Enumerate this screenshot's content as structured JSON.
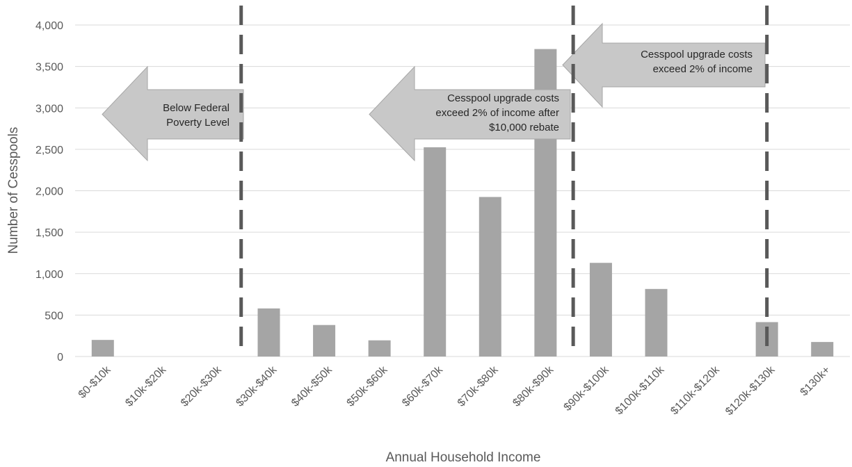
{
  "chart_data": {
    "type": "bar",
    "xlabel": "Annual Household Income",
    "ylabel": "Number of Cesspools",
    "ylim": [
      0,
      4000
    ],
    "yticks": [
      "0",
      "500",
      "1,000",
      "1,500",
      "2,000",
      "2,500",
      "3,000",
      "3,500",
      "4,000"
    ],
    "ytick_values": [
      0,
      500,
      1000,
      1500,
      2000,
      2500,
      3000,
      3500,
      4000
    ],
    "categories": [
      "$0-$10k",
      "$10k-$20k",
      "$20k-$30k",
      "$30k-$40k",
      "$40k-$50k",
      "$50k-$60k",
      "$60k-$70k",
      "$70k-$80k",
      "$80k-$90k",
      "$90k-$100k",
      "$100k-$110k",
      "$110k-$120k",
      "$120k-$130k",
      "$130k+"
    ],
    "values": [
      200,
      0,
      0,
      580,
      380,
      195,
      2525,
      1925,
      3710,
      1130,
      815,
      0,
      415,
      175
    ],
    "grid": true,
    "bar_color": "#a5a5a5",
    "grid_color": "#d9d9d9",
    "line_color": "#595959",
    "arrow_color": "#c8c8c8",
    "thresholds": [
      {
        "between": [
          2,
          3
        ]
      },
      {
        "between": [
          8,
          9
        ]
      },
      {
        "between": [
          12,
          12
        ]
      }
    ],
    "annotations": [
      {
        "lines": [
          "Below Federal",
          "Poverty Level"
        ]
      },
      {
        "lines": [
          "Cesspool upgrade costs",
          "exceed 2% of income after",
          "$10,000 rebate"
        ]
      },
      {
        "lines": [
          "Cesspool upgrade costs",
          "exceed 2% of income"
        ]
      }
    ]
  }
}
